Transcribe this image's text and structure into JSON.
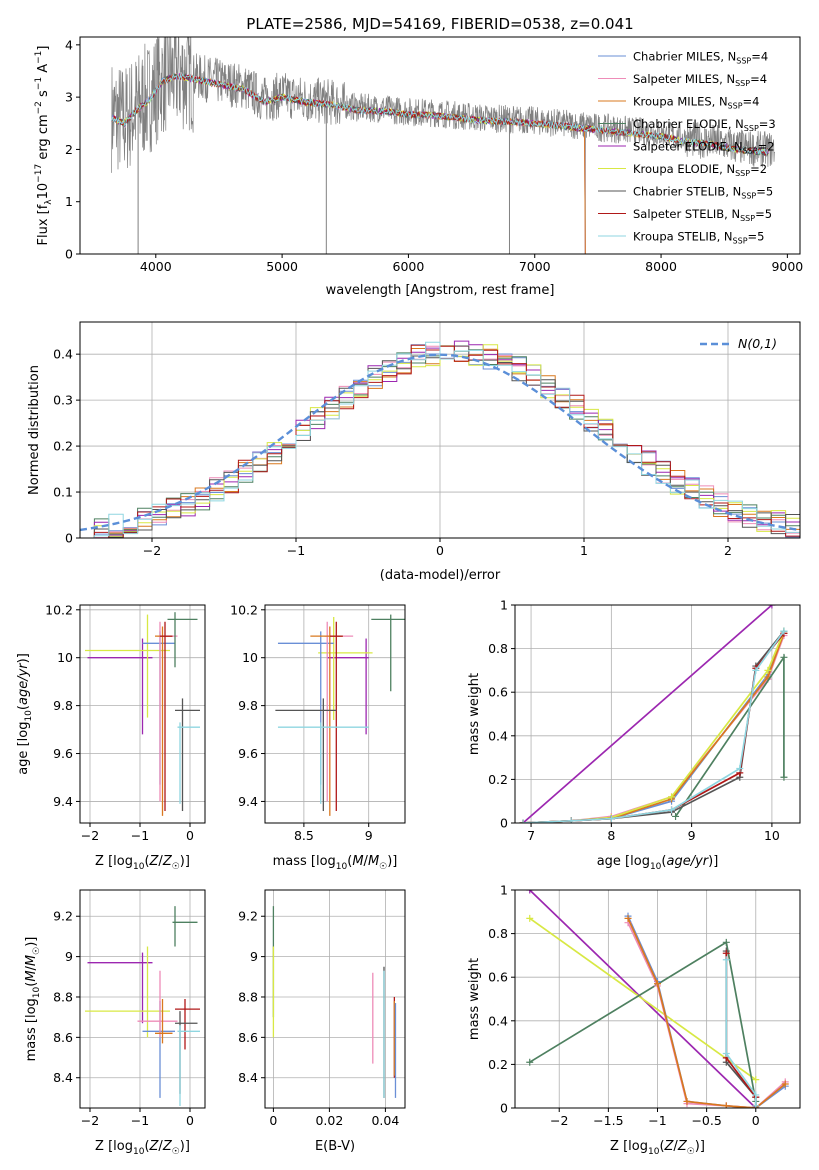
{
  "title": "PLATE=2586, MJD=54169, FIBERID=0538, z=0.041",
  "colors": {
    "Chabrier MILES": "#6a8fd6",
    "Salpeter MILES": "#ee8cb8",
    "Kroupa MILES": "#d9781f",
    "Chabrier ELODIE": "#4e8060",
    "Salpeter ELODIE": "#9c27b0",
    "Kroupa ELODIE": "#d8e844",
    "Chabrier STELIB": "#555555",
    "Salpeter STELIB": "#b01818",
    "Kroupa STELIB": "#8fd6e0",
    "data": "#808080",
    "normal": "#5b8fd8"
  },
  "chart_data": [
    {
      "id": "spectrum",
      "type": "line",
      "title": "PLATE=2586, MJD=54169, FIBERID=0538, z=0.041",
      "xlabel": "wavelength [Angstrom, rest frame]",
      "ylabel": "Flux [f_λ 10^-17 erg cm^-2 s^-1 A^-1]",
      "xlim": [
        3400,
        9100
      ],
      "ylim": [
        0,
        4.15
      ],
      "xticks": [
        4000,
        5000,
        6000,
        7000,
        8000,
        9000
      ],
      "yticks": [
        0,
        1,
        2,
        3,
        4
      ],
      "legend_position": "top-right",
      "legend": [
        {
          "label": "Chabrier MILES, N",
          "sub": "SSP",
          "suffix": "=4",
          "key": "Chabrier MILES"
        },
        {
          "label": "Salpeter MILES, N",
          "sub": "SSP",
          "suffix": "=4",
          "key": "Salpeter MILES"
        },
        {
          "label": "Kroupa MILES, N",
          "sub": "SSP",
          "suffix": "=4",
          "key": "Kroupa MILES"
        },
        {
          "label": "Chabrier ELODIE, N",
          "sub": "SSP",
          "suffix": "=3",
          "key": "Chabrier ELODIE"
        },
        {
          "label": "Salpeter ELODIE, N",
          "sub": "SSP",
          "suffix": "=2",
          "key": "Salpeter ELODIE"
        },
        {
          "label": "Kroupa ELODIE, N",
          "sub": "SSP",
          "suffix": "=2",
          "key": "Kroupa ELODIE"
        },
        {
          "label": "Chabrier STELIB, N",
          "sub": "SSP",
          "suffix": "=5",
          "key": "Chabrier STELIB"
        },
        {
          "label": "Salpeter STELIB, N",
          "sub": "SSP",
          "suffix": "=5",
          "key": "Salpeter STELIB"
        },
        {
          "label": "Kroupa STELIB, N",
          "sub": "SSP",
          "suffix": "=5",
          "key": "Kroupa STELIB"
        }
      ],
      "continuum_model": {
        "x": [
          3650,
          3750,
          3850,
          3950,
          4050,
          4150,
          4300,
          4500,
          4700,
          4860,
          5000,
          5200,
          5400,
          5600,
          5800,
          6000,
          6200,
          6400,
          6600,
          6800,
          7000,
          7200,
          7400,
          7600,
          7800,
          8000,
          8200,
          8400,
          8600,
          8800
        ],
        "y": [
          2.65,
          2.55,
          2.8,
          3.0,
          3.35,
          3.45,
          3.4,
          3.3,
          3.2,
          2.95,
          3.05,
          2.95,
          2.9,
          2.8,
          2.78,
          2.72,
          2.7,
          2.65,
          2.6,
          2.58,
          2.55,
          2.5,
          2.45,
          2.4,
          2.35,
          2.3,
          2.2,
          2.15,
          2.05,
          2.0
        ]
      },
      "spikes": [
        {
          "x": 5350,
          "y": 0.0
        },
        {
          "x": 6800,
          "y": 0.0
        },
        {
          "x": 3860,
          "y": 0.0
        },
        {
          "x": 7400,
          "y": 0.0
        }
      ]
    },
    {
      "id": "residual_hist",
      "type": "step",
      "xlabel": "(data-model)/error",
      "ylabel": "Normed distribution",
      "xlim": [
        -2.5,
        2.5
      ],
      "ylim": [
        0,
        0.47
      ],
      "xticks": [
        -2,
        -1,
        0,
        1,
        2
      ],
      "yticks": [
        0.0,
        0.1,
        0.2,
        0.3,
        0.4
      ],
      "legend_position": "top-right",
      "legend_label": "N(0,1)",
      "bin_width": 0.1,
      "bins_start": -2.5
    },
    {
      "id": "age_vs_Z",
      "type": "errorbar",
      "xlabel": "Z [log10(Z/Z☉)]",
      "ylabel": "age [log10(age/yr)]",
      "xlim": [
        -2.2,
        0.3
      ],
      "ylim": [
        9.31,
        10.22
      ],
      "xticks": [
        -2,
        -1,
        0
      ],
      "yticks": [
        9.4,
        9.6,
        9.8,
        10.0,
        10.2
      ],
      "points": [
        {
          "key": "Salpeter ELODIE",
          "x": -0.95,
          "y": 10.0,
          "xerr": [
            1.1,
            0.2
          ],
          "yerr": [
            0.32,
            0.08
          ]
        },
        {
          "key": "Kroupa ELODIE",
          "x": -0.85,
          "y": 10.03,
          "xerr": [
            1.25,
            0.45
          ],
          "yerr": [
            0.28,
            0.15
          ]
        },
        {
          "key": "Chabrier MILES",
          "x": -0.6,
          "y": 10.06,
          "xerr": [
            0.35,
            0.3
          ],
          "yerr": [
            0.59,
            0.05
          ]
        },
        {
          "key": "Salpeter MILES",
          "x": -0.6,
          "y": 10.09,
          "xerr": [
            0.05,
            0.35
          ],
          "yerr": [
            0.69,
            0.06
          ]
        },
        {
          "key": "Kroupa MILES",
          "x": -0.55,
          "y": 10.09,
          "xerr": [
            0.15,
            0.2
          ],
          "yerr": [
            0.75,
            0.04
          ]
        },
        {
          "key": "Salpeter STELIB",
          "x": -0.5,
          "y": 10.09,
          "xerr": [
            0.1,
            0.15
          ],
          "yerr": [
            0.73,
            0.06
          ]
        },
        {
          "key": "Chabrier ELODIE",
          "x": -0.3,
          "y": 10.16,
          "xerr": [
            0.15,
            0.45
          ],
          "yerr": [
            0.2,
            0.03
          ]
        },
        {
          "key": "Chabrier STELIB",
          "x": -0.15,
          "y": 9.78,
          "xerr": [
            0.15,
            0.35
          ],
          "yerr": [
            0.42,
            0.05
          ]
        },
        {
          "key": "Kroupa STELIB",
          "x": -0.2,
          "y": 9.71,
          "xerr": [
            0.05,
            0.4
          ],
          "yerr": [
            0.32,
            0.02
          ]
        }
      ]
    },
    {
      "id": "age_vs_mass",
      "type": "errorbar",
      "xlabel": "mass [log10(M/M☉)]",
      "ylabel": "",
      "xlim": [
        8.2,
        9.28
      ],
      "ylim": [
        9.31,
        10.22
      ],
      "xticks": [
        8.5,
        9.0
      ],
      "yticks": [
        9.4,
        9.6,
        9.8,
        10.0,
        10.2
      ],
      "points": [
        {
          "key": "Salpeter ELODIE",
          "x": 8.98,
          "y": 10.0,
          "xerr": [
            0.3,
            0.02
          ],
          "yerr": [
            0.32,
            0.08
          ]
        },
        {
          "key": "Kroupa ELODIE",
          "x": 8.73,
          "y": 10.02,
          "xerr": [
            0.12,
            0.3
          ],
          "yerr": [
            0.28,
            0.15
          ]
        },
        {
          "key": "Chabrier MILES",
          "x": 8.63,
          "y": 10.06,
          "xerr": [
            0.33,
            0.1
          ],
          "yerr": [
            0.59,
            0.05
          ]
        },
        {
          "key": "Salpeter MILES",
          "x": 8.68,
          "y": 10.09,
          "xerr": [
            0.02,
            0.2
          ],
          "yerr": [
            0.69,
            0.06
          ]
        },
        {
          "key": "Kroupa MILES",
          "x": 8.7,
          "y": 10.09,
          "xerr": [
            0.15,
            0.1
          ],
          "yerr": [
            0.75,
            0.04
          ]
        },
        {
          "key": "Salpeter STELIB",
          "x": 8.75,
          "y": 10.09,
          "xerr": [
            0.05,
            0.05
          ],
          "yerr": [
            0.73,
            0.06
          ]
        },
        {
          "key": "Chabrier ELODIE",
          "x": 9.17,
          "y": 10.16,
          "xerr": [
            0.15,
            0.17
          ],
          "yerr": [
            0.3,
            0.02
          ]
        },
        {
          "key": "Chabrier STELIB",
          "x": 8.65,
          "y": 9.78,
          "xerr": [
            0.37,
            0.1
          ],
          "yerr": [
            0.42,
            0.05
          ]
        },
        {
          "key": "Kroupa STELIB",
          "x": 8.63,
          "y": 9.71,
          "xerr": [
            0.33,
            0.37
          ],
          "yerr": [
            0.32,
            0.02
          ]
        }
      ]
    },
    {
      "id": "mass_weight_vs_age",
      "type": "line",
      "xlabel": "age [log10(age/yr)]",
      "ylabel": "mass weight",
      "xlim": [
        6.8,
        10.35
      ],
      "ylim": [
        0,
        1.0
      ],
      "xticks": [
        7,
        8,
        9,
        10
      ],
      "yticks": [
        0.0,
        0.2,
        0.4,
        0.6,
        0.8,
        1.0
      ],
      "series": [
        {
          "key": "Salpeter ELODIE",
          "x": [
            6.9,
            10.0
          ],
          "y": [
            0.0,
            1.0
          ]
        },
        {
          "key": "Chabrier MILES",
          "x": [
            6.9,
            7.5,
            8.0,
            8.75,
            9.95,
            10.15
          ],
          "y": [
            0.0,
            0.01,
            0.02,
            0.1,
            0.68,
            0.87
          ]
        },
        {
          "key": "Salpeter MILES",
          "x": [
            6.9,
            7.5,
            8.0,
            8.75,
            9.95,
            10.15
          ],
          "y": [
            0.0,
            0.01,
            0.03,
            0.12,
            0.66,
            0.86
          ]
        },
        {
          "key": "Kroupa MILES",
          "x": [
            6.9,
            7.5,
            8.0,
            8.75,
            9.95,
            10.15
          ],
          "y": [
            0.0,
            0.01,
            0.02,
            0.11,
            0.67,
            0.87
          ]
        },
        {
          "key": "Kroupa ELODIE",
          "x": [
            6.9,
            7.5,
            8.0,
            8.75,
            9.95,
            10.15
          ],
          "y": [
            0.0,
            0.01,
            0.025,
            0.12,
            0.7,
            0.88
          ]
        },
        {
          "key": "Chabrier ELODIE",
          "x": [
            8.8,
            10.15,
            10.15
          ],
          "y": [
            0.03,
            0.76,
            0.21
          ]
        },
        {
          "key": "Chabrier STELIB",
          "x": [
            6.9,
            7.5,
            8.0,
            8.75,
            9.6,
            9.8,
            10.15
          ],
          "y": [
            0.0,
            0.01,
            0.02,
            0.05,
            0.21,
            0.72,
            0.88
          ]
        },
        {
          "key": "Salpeter STELIB",
          "x": [
            6.9,
            7.5,
            8.0,
            8.75,
            9.6,
            9.8,
            10.15
          ],
          "y": [
            0.0,
            0.01,
            0.02,
            0.06,
            0.23,
            0.71,
            0.87
          ]
        },
        {
          "key": "Kroupa STELIB",
          "x": [
            6.9,
            7.5,
            8.0,
            8.75,
            9.6,
            9.8,
            10.15
          ],
          "y": [
            0.0,
            0.01,
            0.02,
            0.06,
            0.25,
            0.7,
            0.88
          ]
        }
      ]
    },
    {
      "id": "mass_vs_Z",
      "type": "errorbar",
      "xlabel": "Z [log10(Z/Z☉)]",
      "ylabel": "mass [log10(M/M☉)]",
      "xlim": [
        -2.2,
        0.3
      ],
      "ylim": [
        8.25,
        9.33
      ],
      "xticks": [
        -2,
        -1,
        0
      ],
      "yticks": [
        8.4,
        8.6,
        8.8,
        9.0,
        9.2
      ],
      "points": [
        {
          "key": "Salpeter ELODIE",
          "x": -0.95,
          "y": 8.97,
          "xerr": [
            1.1,
            0.2
          ],
          "yerr": [
            0.3,
            0.05
          ]
        },
        {
          "key": "Kroupa ELODIE",
          "x": -0.85,
          "y": 8.73,
          "xerr": [
            1.25,
            0.45
          ],
          "yerr": [
            0.13,
            0.32
          ]
        },
        {
          "key": "Chabrier MILES",
          "x": -0.6,
          "y": 8.63,
          "xerr": [
            0.35,
            0.3
          ],
          "yerr": [
            0.33,
            0.15
          ]
        },
        {
          "key": "Salpeter MILES",
          "x": -0.6,
          "y": 8.68,
          "xerr": [
            0.45,
            0.35
          ],
          "yerr": [
            0.08,
            0.25
          ]
        },
        {
          "key": "Kroupa MILES",
          "x": -0.55,
          "y": 8.62,
          "xerr": [
            0.15,
            0.2
          ],
          "yerr": [
            0.05,
            0.17
          ]
        },
        {
          "key": "Salpeter STELIB",
          "x": -0.1,
          "y": 8.74,
          "xerr": [
            0.2,
            0.3
          ],
          "yerr": [
            0.2,
            0.05
          ]
        },
        {
          "key": "Chabrier ELODIE",
          "x": -0.3,
          "y": 9.17,
          "xerr": [
            0.05,
            0.45
          ],
          "yerr": [
            0.12,
            0.08
          ]
        },
        {
          "key": "Chabrier STELIB",
          "x": -0.2,
          "y": 8.67,
          "xerr": [
            0.1,
            0.35
          ],
          "yerr": [
            0.35,
            0.06
          ]
        },
        {
          "key": "Kroupa STELIB",
          "x": -0.2,
          "y": 8.63,
          "xerr": [
            0.05,
            0.4
          ],
          "yerr": [
            0.37,
            0.03
          ]
        }
      ]
    },
    {
      "id": "mass_vs_EBV",
      "type": "errorbar",
      "xlabel": "E(B-V)",
      "ylabel": "",
      "xlim": [
        -0.003,
        0.047
      ],
      "ylim": [
        8.25,
        9.33
      ],
      "xticks": [
        0.0,
        0.02,
        0.04
      ],
      "yticks": [
        8.4,
        8.6,
        8.8,
        9.0,
        9.2
      ],
      "points": [
        {
          "key": "Chabrier ELODIE",
          "x": 0.0,
          "y": 9.0,
          "xerr": [
            0,
            0
          ],
          "yerr": [
            0.3,
            0.25
          ]
        },
        {
          "key": "Kroupa ELODIE",
          "x": 0.0,
          "y": 8.8,
          "xerr": [
            0,
            0
          ],
          "yerr": [
            0.2,
            0.25
          ]
        },
        {
          "key": "Salpeter MILES",
          "x": 0.0355,
          "y": 8.62,
          "xerr": [
            0,
            0
          ],
          "yerr": [
            0.15,
            0.3
          ]
        },
        {
          "key": "Chabrier STELIB",
          "x": 0.0395,
          "y": 8.6,
          "xerr": [
            0,
            0
          ],
          "yerr": [
            0.3,
            0.35
          ]
        },
        {
          "key": "Kroupa STELIB",
          "x": 0.0395,
          "y": 8.55,
          "xerr": [
            0,
            0
          ],
          "yerr": [
            0.25,
            0.38
          ]
        },
        {
          "key": "Salpeter STELIB",
          "x": 0.0432,
          "y": 8.6,
          "xerr": [
            0,
            0
          ],
          "yerr": [
            0.2,
            0.2
          ]
        },
        {
          "key": "Kroupa MILES",
          "x": 0.0432,
          "y": 8.58,
          "xerr": [
            0,
            0
          ],
          "yerr": [
            0.17,
            0.2
          ]
        },
        {
          "key": "Chabrier MILES",
          "x": 0.0436,
          "y": 8.52,
          "xerr": [
            0,
            0
          ],
          "yerr": [
            0.22,
            0.25
          ]
        }
      ]
    },
    {
      "id": "mass_weight_vs_Z",
      "type": "line",
      "xlabel": "Z [log10(Z/Z☉)]",
      "ylabel": "mass weight",
      "xlim": [
        -2.45,
        0.45
      ],
      "ylim": [
        0,
        1.0
      ],
      "xticks": [
        -2.0,
        -1.5,
        -1.0,
        -0.5,
        0.0
      ],
      "yticks": [
        0.0,
        0.2,
        0.4,
        0.6,
        0.8,
        1.0
      ],
      "series": [
        {
          "key": "Salpeter ELODIE",
          "x": [
            -2.3,
            0.0
          ],
          "y": [
            1.0,
            0.0
          ]
        },
        {
          "key": "Kroupa ELODIE",
          "x": [
            -2.3,
            0.0
          ],
          "y": [
            0.87,
            0.13
          ]
        },
        {
          "key": "Chabrier ELODIE",
          "x": [
            -2.3,
            -0.3,
            0.0
          ],
          "y": [
            0.21,
            0.76,
            0.03
          ]
        },
        {
          "key": "Chabrier MILES",
          "x": [
            -1.3,
            -1.0,
            -0.7,
            -0.3,
            0.0,
            0.3
          ],
          "y": [
            0.88,
            0.58,
            0.03,
            0.01,
            0.0,
            0.1
          ]
        },
        {
          "key": "Salpeter MILES",
          "x": [
            -1.3,
            -1.0,
            -0.7,
            -0.3,
            0.0,
            0.3
          ],
          "y": [
            0.85,
            0.56,
            0.02,
            0.01,
            0.0,
            0.12
          ]
        },
        {
          "key": "Kroupa MILES",
          "x": [
            -1.3,
            -1.0,
            -0.7,
            -0.3,
            0.0,
            0.3
          ],
          "y": [
            0.87,
            0.57,
            0.03,
            0.01,
            0.0,
            0.11
          ]
        },
        {
          "key": "Chabrier STELIB",
          "x": [
            -0.3,
            -0.3,
            0.0,
            0.0
          ],
          "y": [
            0.72,
            0.21,
            0.05,
            0.0
          ]
        },
        {
          "key": "Salpeter STELIB",
          "x": [
            -0.3,
            -0.3,
            0.0,
            0.0
          ],
          "y": [
            0.71,
            0.23,
            0.05,
            0.01
          ]
        },
        {
          "key": "Kroupa STELIB",
          "x": [
            -0.3,
            -0.3,
            0.0,
            0.0
          ],
          "y": [
            0.68,
            0.25,
            0.06,
            0.01
          ]
        }
      ]
    }
  ]
}
